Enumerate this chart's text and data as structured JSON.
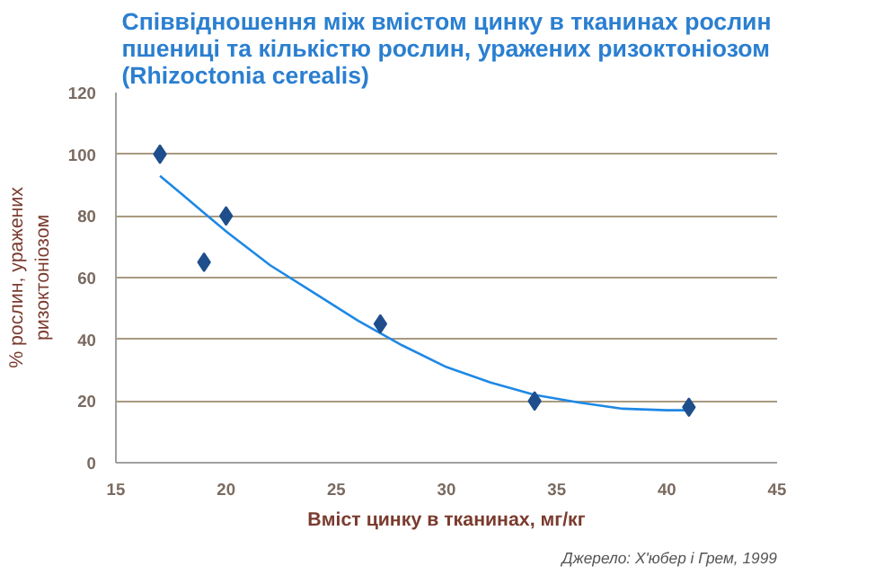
{
  "chart_data": {
    "type": "scatter",
    "title": "Співвідношення між вмістом цинку в тканинах рослин\nпшениці та кількістю рослин, уражених ризоктоніозом\n(Rhizoctonia cerealis)",
    "xlabel": "Вміст цинку в тканинах, мг/кг",
    "ylabel": "% рослин, уражених\nризоктоніозом",
    "annotations": [
      "Джерело: Х'юбер і Грем, 1999"
    ],
    "xlim": [
      15,
      45
    ],
    "xticks": [
      15,
      20,
      25,
      30,
      35,
      40,
      45
    ],
    "ylim": [
      0,
      120
    ],
    "yticks": [
      0,
      20,
      40,
      60,
      80,
      100,
      120
    ],
    "grid": "y",
    "marker": "diamond",
    "series": [
      {
        "color": "#1f4e8c",
        "x": [
          17,
          19,
          20,
          27,
          34,
          41
        ],
        "values": [
          100,
          65,
          80,
          45,
          20,
          18
        ]
      },
      {
        "type": "line",
        "color": "#1e88e5",
        "line_style": "solid",
        "marker": "none",
        "x": [
          17,
          18,
          19,
          20,
          22,
          24,
          26,
          27,
          28,
          30,
          32,
          34,
          36,
          38,
          40,
          41
        ],
        "values": [
          93,
          87,
          81,
          75,
          64,
          55,
          46,
          42,
          38,
          31,
          26,
          22,
          19.5,
          17.5,
          17,
          17
        ]
      }
    ]
  }
}
